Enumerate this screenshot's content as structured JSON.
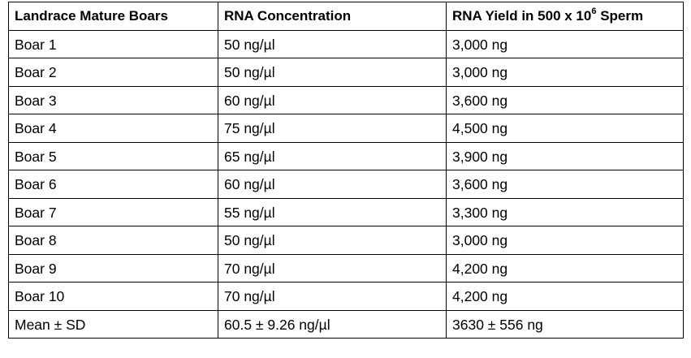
{
  "table": {
    "headers": {
      "col1": "Landrace Mature Boars",
      "col2": "RNA Concentration",
      "col3_prefix": "RNA Yield in 500 x 10",
      "col3_sup": "6",
      "col3_suffix": " Sperm"
    },
    "rows": [
      [
        "Boar 1",
        "50 ng/µl",
        "3,000 ng"
      ],
      [
        "Boar 2",
        "50 ng/µl",
        "3,000 ng"
      ],
      [
        "Boar 3",
        "60 ng/µl",
        "3,600 ng"
      ],
      [
        "Boar 4",
        "75 ng/µl",
        "4,500 ng"
      ],
      [
        "Boar 5",
        "65 ng/µl",
        "3,900 ng"
      ],
      [
        "Boar 6",
        "60 ng/µl",
        "3,600 ng"
      ],
      [
        "Boar 7",
        "55 ng/µl",
        "3,300 ng"
      ],
      [
        "Boar 8",
        "50 ng/µl",
        "3,000 ng"
      ],
      [
        "Boar 9",
        "70 ng/µl",
        "4,200 ng"
      ],
      [
        "Boar 10",
        "70 ng/µl",
        "4,200 ng"
      ],
      [
        "Mean ± SD",
        "60.5 ± 9.26 ng/µl",
        "3630 ± 556 ng"
      ]
    ]
  }
}
